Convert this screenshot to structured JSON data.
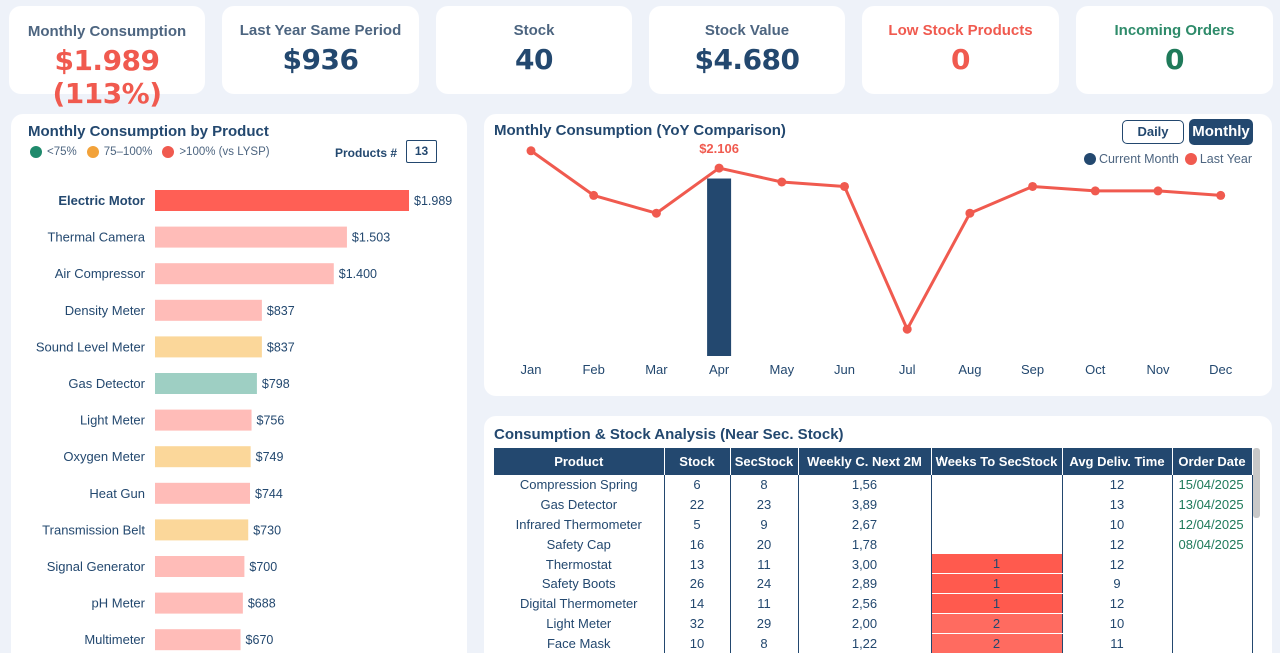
{
  "kpis": [
    {
      "title": "Monthly Consumption",
      "value": "$1.989 (113%)",
      "color": "#f05a4f"
    },
    {
      "title": "Last Year Same Period",
      "value": "$936",
      "color": "#23486f"
    },
    {
      "title": "Stock",
      "value": "40",
      "color": "#23486f"
    },
    {
      "title": "Stock Value",
      "value": "$4.680",
      "color": "#23486f"
    },
    {
      "title": "Low Stock Products",
      "value": "0",
      "color": "#f05a4f"
    },
    {
      "title": "Incoming Orders",
      "value": "0",
      "color": "#1f7a5a"
    }
  ],
  "kpi_title_colors": [
    "#4d6580",
    "#4d6580",
    "#4d6580",
    "#4d6580",
    "#f05a4f",
    "#2e8b6a"
  ],
  "bar_panel": {
    "title": "Monthly Consumption by Product",
    "legend": [
      {
        "label": "<75%",
        "color": "#1f8a6c"
      },
      {
        "label": "75–100%",
        "color": "#f2a23a"
      },
      {
        "label": ">100% (vs LYSP)",
        "color": "#f05a4f"
      }
    ],
    "products_label": "Products #",
    "products_count": "13"
  },
  "chart_data": [
    {
      "type": "bar",
      "orientation": "horizontal",
      "title": "Monthly Consumption by Product",
      "categories": [
        "Electric Motor",
        "Thermal Camera",
        "Air Compressor",
        "Density Meter",
        "Sound Level Meter",
        "Gas Detector",
        "Light Meter",
        "Oxygen Meter",
        "Heat Gun",
        "Transmission Belt",
        "Signal Generator",
        "pH Meter",
        "Multimeter"
      ],
      "values": [
        1989,
        1503,
        1400,
        837,
        837,
        798,
        756,
        749,
        744,
        730,
        700,
        688,
        670
      ],
      "value_labels": [
        "$1.989",
        "$1.503",
        "$1.400",
        "$837",
        "$837",
        "$798",
        "$756",
        "$749",
        "$744",
        "$730",
        "$700",
        "$688",
        "$670"
      ],
      "colors": [
        "#ff5f55",
        "#ffbcb8",
        "#ffbcb8",
        "#ffbcb8",
        "#fbd79a",
        "#9ecfc3",
        "#ffbcb8",
        "#fbd79a",
        "#ffbcb8",
        "#fbd79a",
        "#ffbcb8",
        "#ffbcb8",
        "#ffbcb8"
      ],
      "selected": "Electric Motor"
    },
    {
      "type": "line",
      "title": "Monthly Consumption (YoY Comparison)",
      "categories": [
        "Jan",
        "Feb",
        "Mar",
        "Apr",
        "May",
        "Jun",
        "Jul",
        "Aug",
        "Sep",
        "Oct",
        "Nov",
        "Dec"
      ],
      "series": [
        {
          "name": "Current Month",
          "type": "bar",
          "color": "#23486f",
          "values": [
            null,
            null,
            null,
            1989,
            null,
            null,
            null,
            null,
            null,
            null,
            null,
            null
          ]
        },
        {
          "name": "Last Year",
          "type": "line",
          "color": "#f05a4f",
          "values": [
            2300,
            1800,
            1600,
            2106,
            1950,
            1900,
            300,
            1600,
            1900,
            1850,
            1850,
            1800
          ]
        }
      ],
      "annotation": {
        "category": "Apr",
        "label": "$2.106"
      },
      "ylim": [
        0,
        2600
      ],
      "legend": "top-right"
    }
  ],
  "line_panel": {
    "title": "Monthly Consumption (YoY Comparison)",
    "daily_label": "Daily",
    "monthly_label": "Monthly",
    "legend": [
      {
        "label": "Current Month",
        "color": "#23486f"
      },
      {
        "label": "Last Year",
        "color": "#f05a4f"
      }
    ]
  },
  "table": {
    "title": "Consumption & Stock Analysis (Near Sec. Stock)",
    "columns": [
      "Product",
      "Stock",
      "SecStock",
      "Weekly C. Next 2M",
      "Weeks To SecStock",
      "Avg Deliv. Time",
      "Order Date"
    ],
    "sorted_column": "Weeks To SecStock",
    "rows": [
      {
        "product": "Compression Spring",
        "stock": "6",
        "sec": "8",
        "weekly": "1,56",
        "weeks": "",
        "deliv": "12",
        "order": "15/04/2025"
      },
      {
        "product": "Gas Detector",
        "stock": "22",
        "sec": "23",
        "weekly": "3,89",
        "weeks": "",
        "deliv": "13",
        "order": "13/04/2025"
      },
      {
        "product": "Infrared Thermometer",
        "stock": "5",
        "sec": "9",
        "weekly": "2,67",
        "weeks": "",
        "deliv": "10",
        "order": "12/04/2025"
      },
      {
        "product": "Safety Cap",
        "stock": "16",
        "sec": "20",
        "weekly": "1,78",
        "weeks": "",
        "deliv": "12",
        "order": "08/04/2025"
      },
      {
        "product": "Thermostat",
        "stock": "13",
        "sec": "11",
        "weekly": "3,00",
        "weeks": "1",
        "deliv": "12",
        "order": ""
      },
      {
        "product": "Safety Boots",
        "stock": "26",
        "sec": "24",
        "weekly": "2,89",
        "weeks": "1",
        "deliv": "9",
        "order": ""
      },
      {
        "product": "Digital Thermometer",
        "stock": "14",
        "sec": "11",
        "weekly": "2,56",
        "weeks": "1",
        "deliv": "12",
        "order": ""
      },
      {
        "product": "Light Meter",
        "stock": "32",
        "sec": "29",
        "weekly": "2,00",
        "weeks": "2",
        "deliv": "10",
        "order": ""
      },
      {
        "product": "Face Mask",
        "stock": "10",
        "sec": "8",
        "weekly": "1,22",
        "weeks": "2",
        "deliv": "11",
        "order": ""
      }
    ],
    "weeks_colors": {
      "1": "#ff5a4e",
      "2": "#ff6b60"
    }
  }
}
